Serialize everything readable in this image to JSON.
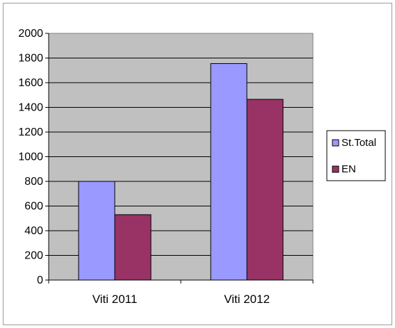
{
  "chart_data": {
    "type": "bar",
    "categories": [
      "Viti 2011",
      "Viti 2012"
    ],
    "series": [
      {
        "name": "St.Total",
        "values": [
          800,
          1755
        ],
        "color": "#9999ff"
      },
      {
        "name": "EN",
        "values": [
          530,
          1465
        ],
        "color": "#993366"
      }
    ],
    "ylim": [
      0,
      2000
    ],
    "yticks": [
      0,
      200,
      400,
      600,
      800,
      1000,
      1200,
      1400,
      1600,
      1800,
      2000
    ],
    "grid": true,
    "plot_background": "#c0c0c0",
    "legend_position": "right"
  }
}
